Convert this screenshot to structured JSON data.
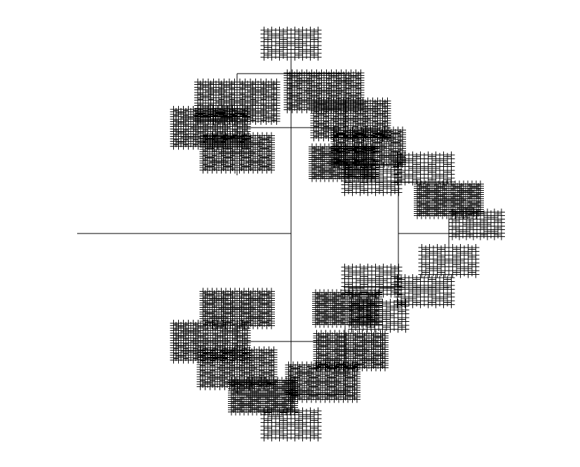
{
  "figure": {
    "kind": "h-tree fractal (cross-stamped)",
    "stroke_color": "#000000",
    "background_color": "#ffffff",
    "levels_drawn": 6,
    "stem_direction": "left",
    "partial_quadrants_omitted": [
      "upper-left-inner",
      "lower-left-inner"
    ]
  }
}
